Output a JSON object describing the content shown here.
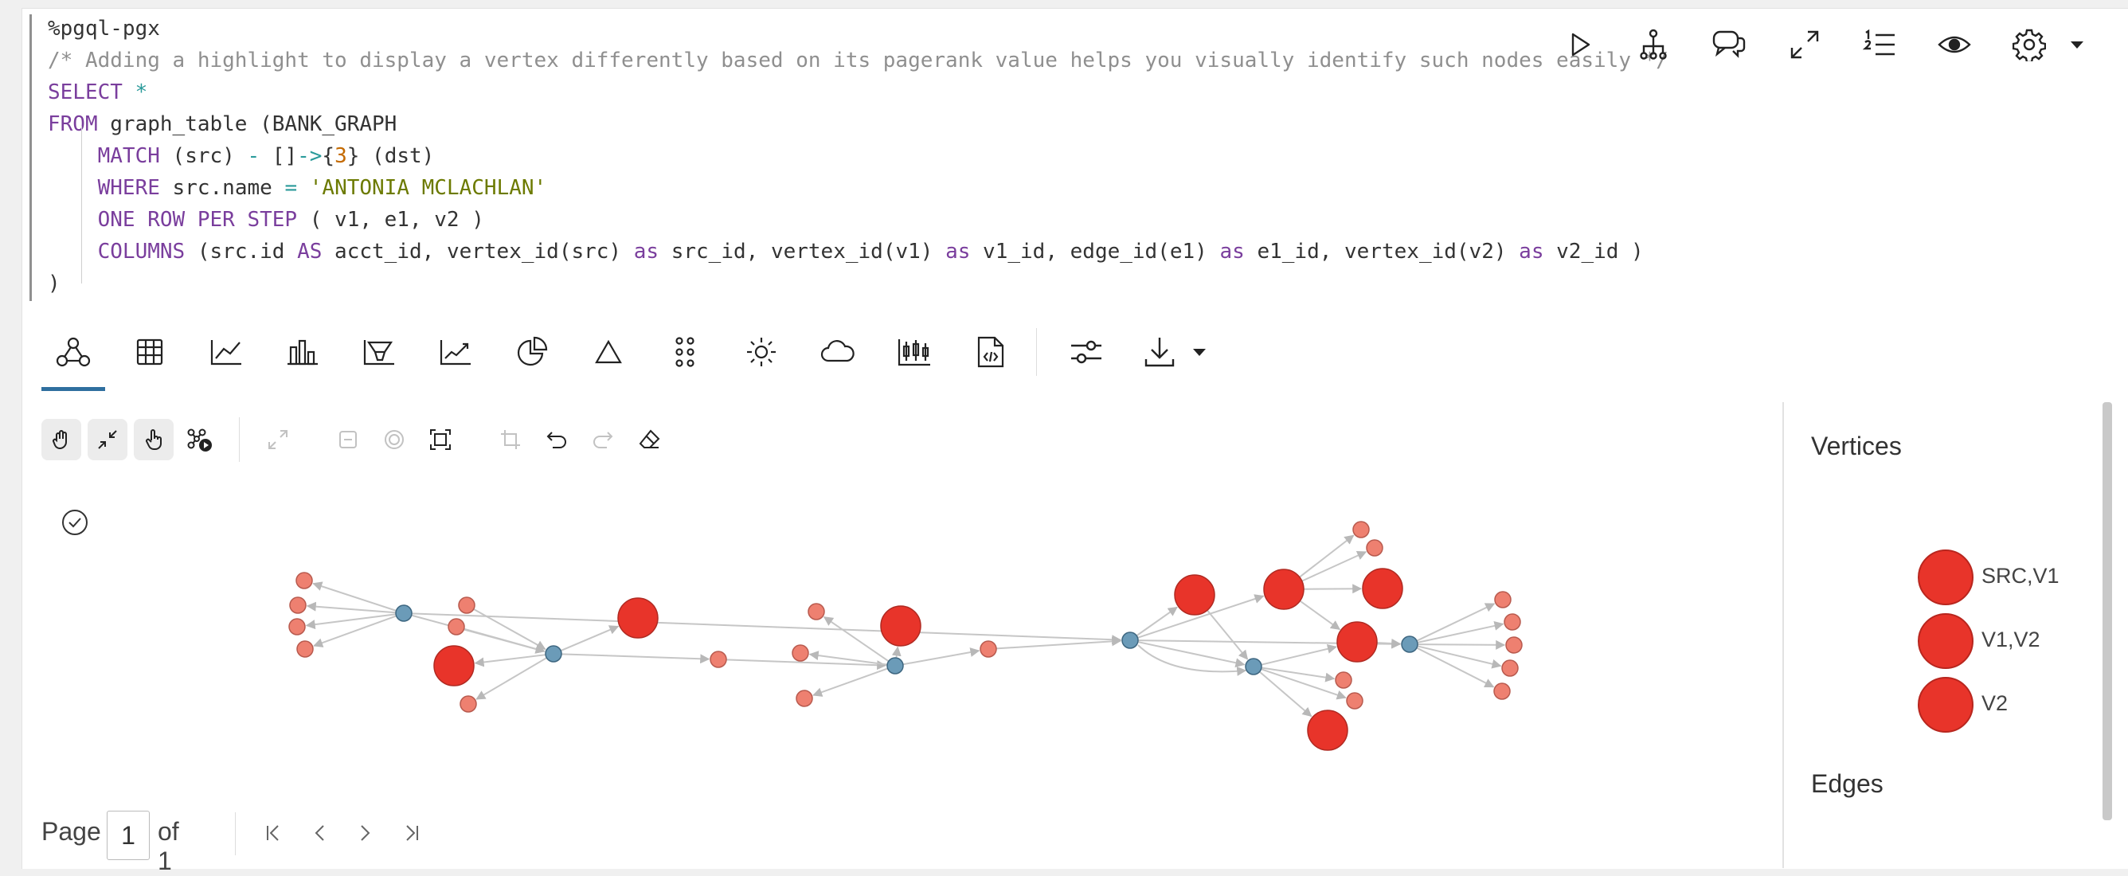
{
  "code": {
    "magic": "%pgql-pgx",
    "comment": "/* Adding a highlight to display a vertex differently based on its pagerank value helps you visually identify such nodes easily */",
    "lines": [
      {
        "parts": [
          {
            "t": "SELECT",
            "c": "kw"
          },
          {
            "t": " ",
            "c": ""
          },
          {
            "t": "*",
            "c": "op"
          }
        ]
      },
      {
        "parts": [
          {
            "t": "FROM",
            "c": "kw"
          },
          {
            "t": " graph_table (BANK_GRAPH",
            "c": ""
          }
        ]
      },
      {
        "parts": [
          {
            "t": "    ",
            "c": ""
          },
          {
            "t": "MATCH",
            "c": "kw"
          },
          {
            "t": " (src) ",
            "c": ""
          },
          {
            "t": "-",
            "c": "op"
          },
          {
            "t": " []",
            "c": ""
          },
          {
            "t": "->",
            "c": "op"
          },
          {
            "t": "{",
            "c": ""
          },
          {
            "t": "3",
            "c": "nu"
          },
          {
            "t": "} (dst)",
            "c": ""
          }
        ]
      },
      {
        "parts": [
          {
            "t": "    ",
            "c": ""
          },
          {
            "t": "WHERE",
            "c": "kw"
          },
          {
            "t": " src.name ",
            "c": ""
          },
          {
            "t": "=",
            "c": "op"
          },
          {
            "t": " ",
            "c": ""
          },
          {
            "t": "'ANTONIA MCLACHLAN'",
            "c": "st"
          }
        ]
      },
      {
        "parts": [
          {
            "t": "    ",
            "c": ""
          },
          {
            "t": "ONE ROW PER STEP",
            "c": "kw"
          },
          {
            "t": " ( v1, e1, v2 )",
            "c": ""
          }
        ]
      },
      {
        "parts": [
          {
            "t": "    ",
            "c": ""
          },
          {
            "t": "COLUMNS",
            "c": "kw"
          },
          {
            "t": " (src.id ",
            "c": ""
          },
          {
            "t": "AS",
            "c": "kw"
          },
          {
            "t": " acct_id, vertex_id(src) ",
            "c": ""
          },
          {
            "t": "as",
            "c": "kw"
          },
          {
            "t": " src_id, vertex_id(v1) ",
            "c": ""
          },
          {
            "t": "as",
            "c": "kw"
          },
          {
            "t": " v1_id, edge_id(e1) ",
            "c": ""
          },
          {
            "t": "as",
            "c": "kw"
          },
          {
            "t": " e1_id, vertex_id(v2) ",
            "c": ""
          },
          {
            "t": "as",
            "c": "kw"
          },
          {
            "t": " v2_id )",
            "c": ""
          }
        ]
      },
      {
        "parts": [
          {
            "t": ")",
            "c": ""
          }
        ]
      }
    ]
  },
  "toolbar_icons": [
    "run-icon",
    "tree-icon",
    "comments-icon",
    "expand-icon",
    "numbered-list-icon",
    "eye-icon",
    "gear-icon",
    "caret-down-icon"
  ],
  "viz_tabs": [
    "graph-icon",
    "table-icon",
    "line-chart-icon",
    "bar-chart-icon",
    "pyramid-icon",
    "trend-chart-icon",
    "pie-chart-icon",
    "triangle-icon",
    "dot-grid-icon",
    "sun-icon",
    "cloud-icon",
    "boxplot-icon",
    "code-file-icon"
  ],
  "graph_tools": [
    "pan-icon",
    "fit-icon",
    "select-hand-icon",
    "network-play-icon",
    "fullscreen-icon",
    "collapse-icon",
    "target-icon",
    "focus-box-icon",
    "crop-icon",
    "undo-icon",
    "redo-icon",
    "eraser-icon"
  ],
  "legend": {
    "vertices_title": "Vertices",
    "edges_title": "Edges",
    "items": [
      {
        "label": "SRC,V1",
        "color": "#e8342a"
      },
      {
        "label": "V1,V2",
        "color": "#e8342a"
      },
      {
        "label": "V2",
        "color": "#e8342a"
      }
    ]
  },
  "colors": {
    "big_vertex": "#e8342a",
    "small_vertex": "#ee8070",
    "hub_vertex": "#6b9bb8",
    "edge": "#c6c6c6",
    "accent": "#2f6f9f"
  },
  "pagination": {
    "page_label": "Page",
    "page_value": "1",
    "of_label": "of 1"
  }
}
